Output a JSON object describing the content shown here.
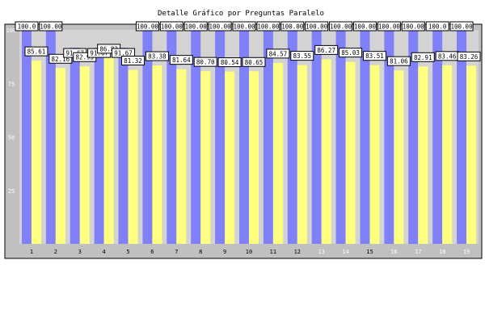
{
  "chart_data": {
    "type": "bar",
    "title": "Detalle Gráfico por Preguntas Paralelo",
    "categories": [
      "1",
      "2",
      "3",
      "4",
      "5",
      "6",
      "7",
      "8",
      "9",
      "10",
      "11",
      "12",
      "13",
      "14",
      "15",
      "16",
      "17",
      "18",
      "19"
    ],
    "series": [
      {
        "values": [
          100.0,
          100.0,
          91.67,
          91.67,
          91.67,
          100.0,
          100.0,
          100.0,
          100.0,
          100.0,
          100.0,
          100.0,
          100.0,
          100.0,
          100.0,
          100.0,
          100.0,
          100.0,
          100.0
        ]
      },
      {
        "values": [
          85.61,
          82.16,
          82.93,
          86.83,
          81.32,
          83.38,
          81.64,
          80.7,
          80.54,
          80.65,
          84.57,
          83.55,
          86.27,
          85.03,
          83.51,
          81.06,
          82.91,
          83.46,
          83.26
        ]
      }
    ],
    "value_labels": [
      [
        "100.0",
        "100.00",
        "91.67",
        "91.67",
        "91.67",
        "100.00",
        "100.00",
        "100.00",
        "100.00",
        "100.00",
        "100.00",
        "100.00",
        "100.00",
        "100.00",
        "100.00",
        "100.00",
        "100.00",
        "100.0",
        "100.00"
      ],
      [
        "85.61",
        "82.16",
        "82.93",
        "86.83",
        "81.32",
        "83.38",
        "81.64",
        "80.70",
        "80.54",
        "80.65",
        "84.57",
        "83.55",
        "86.27",
        "85.03",
        "83.51",
        "81.06",
        "82.91",
        "83.46",
        "83.26"
      ]
    ],
    "ylim": [
      0,
      100
    ],
    "yticks": [
      "25",
      "50",
      "75",
      "100"
    ],
    "colors": {
      "series1": "#8080f8",
      "series2": "#ffff80",
      "plot_bg": "#d3d3d3",
      "frame_bg": "#c0c0c0",
      "tick_dark": "#000000",
      "tick_light": "#ffffff"
    },
    "xtick_colors": [
      "dark",
      "dark",
      "dark",
      "dark",
      "dark",
      "dark",
      "dark",
      "dark",
      "dark",
      "dark",
      "dark",
      "dark",
      "light",
      "light",
      "dark",
      "light",
      "light",
      "light",
      "light"
    ],
    "grid": false
  }
}
